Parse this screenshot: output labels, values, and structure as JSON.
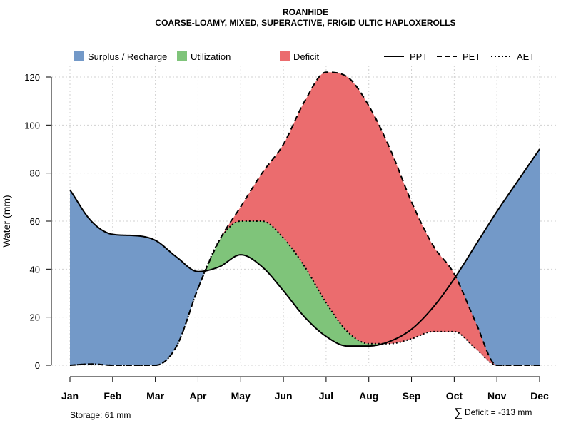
{
  "chart_data": {
    "type": "area",
    "title": "ROANHIDE",
    "subtitle": "COARSE-LOAMY, MIXED, SUPERACTIVE, FRIGID ULTIC HAPLOXEROLLS",
    "xlabel": "",
    "ylabel": "Water (mm)",
    "ylim": [
      0,
      125
    ],
    "yticks": [
      0,
      20,
      40,
      60,
      80,
      100,
      120
    ],
    "grid": true,
    "categories": [
      "Jan",
      "Feb",
      "Mar",
      "Apr",
      "May",
      "Jun",
      "Jul",
      "Aug",
      "Sep",
      "Oct",
      "Nov",
      "Dec"
    ],
    "x": [
      1,
      1.5,
      2,
      2.5,
      3,
      3.5,
      4,
      4.5,
      5,
      5.5,
      6,
      6.5,
      7,
      7.5,
      8,
      8.5,
      9,
      9.5,
      10,
      10.5,
      11,
      11.5,
      12
    ],
    "series": [
      {
        "name": "PPT",
        "style": "solid",
        "values": [
          73,
          60,
          54.5,
          54,
          52,
          45,
          39,
          41,
          46,
          41,
          31,
          20,
          12,
          8,
          8,
          10,
          15,
          24,
          36,
          50,
          64,
          77,
          90
        ]
      },
      {
        "name": "PET",
        "style": "dashed",
        "values": [
          0,
          0.5,
          0,
          0,
          0,
          8,
          32,
          52,
          66,
          80,
          92,
          110,
          122,
          120,
          108,
          90,
          68,
          50,
          38,
          18,
          0,
          0,
          0
        ]
      },
      {
        "name": "AET",
        "style": "dotted",
        "values": [
          0,
          0.5,
          0,
          0,
          0,
          8,
          32,
          52,
          60,
          60,
          53,
          41,
          26,
          14,
          9,
          9,
          11,
          14,
          14,
          7,
          0,
          0,
          0
        ]
      }
    ],
    "areas": [
      {
        "name": "Surplus / Recharge",
        "color": "#7399c8"
      },
      {
        "name": "Utilization",
        "color": "#7fc47a"
      },
      {
        "name": "Deficit",
        "color": "#eb6c6e"
      }
    ],
    "legend_position": "top",
    "annotations": {
      "storage": "Storage: 61 mm",
      "deficit_symbol": "∑",
      "deficit": "Deficit = -313 mm"
    }
  }
}
